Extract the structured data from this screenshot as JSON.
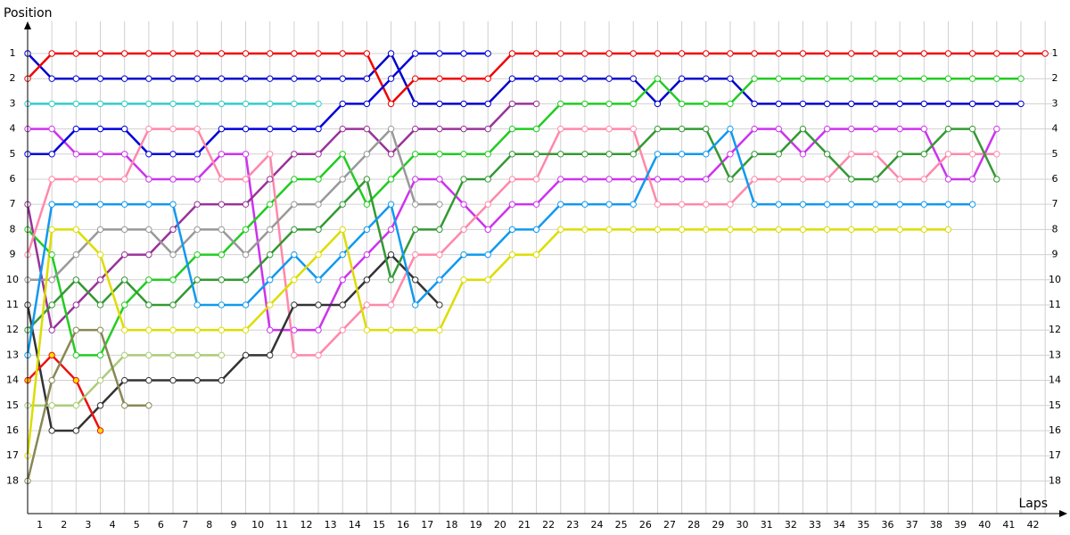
{
  "chart_data": {
    "type": "line",
    "title": "",
    "ylabel": "Position",
    "xlabel": "Laps",
    "xlim": [
      0,
      42.3
    ],
    "ylim": [
      19.3,
      0
    ],
    "grid": true,
    "x": [
      0,
      1,
      2,
      3,
      4,
      5,
      6,
      7,
      8,
      9,
      10,
      11,
      12,
      13,
      14,
      15,
      16,
      17,
      18,
      19,
      20,
      21,
      22,
      23,
      24,
      25,
      26,
      27,
      28,
      29,
      30,
      31,
      32,
      33,
      34,
      35,
      36,
      37,
      38,
      39,
      40,
      41,
      42
    ],
    "yticks": [
      1,
      2,
      3,
      4,
      5,
      6,
      7,
      8,
      9,
      10,
      11,
      12,
      13,
      14,
      15,
      16,
      17,
      18
    ],
    "xticks": [
      {
        "value": 0.5,
        "label": "1"
      },
      {
        "value": 1.5,
        "label": "2"
      },
      {
        "value": 2.5,
        "label": "3"
      },
      {
        "value": 3.5,
        "label": "4"
      },
      {
        "value": 4.5,
        "label": "5"
      },
      {
        "value": 5.5,
        "label": "6"
      },
      {
        "value": 6.5,
        "label": "7"
      },
      {
        "value": 7.5,
        "label": "8"
      },
      {
        "value": 8.5,
        "label": "9"
      },
      {
        "value": 9.5,
        "label": "10"
      },
      {
        "value": 10.5,
        "label": "11"
      },
      {
        "value": 11.5,
        "label": "12"
      },
      {
        "value": 12.5,
        "label": "13"
      },
      {
        "value": 13.5,
        "label": "14"
      },
      {
        "value": 14.5,
        "label": "15"
      },
      {
        "value": 15.5,
        "label": "16"
      },
      {
        "value": 16.5,
        "label": "17"
      },
      {
        "value": 17.5,
        "label": "18"
      },
      {
        "value": 18.5,
        "label": "19"
      },
      {
        "value": 19.5,
        "label": "20"
      },
      {
        "value": 20.5,
        "label": "21"
      },
      {
        "value": 21.5,
        "label": "22"
      },
      {
        "value": 22.5,
        "label": "23"
      },
      {
        "value": 23.5,
        "label": "24"
      },
      {
        "value": 24.5,
        "label": "25"
      },
      {
        "value": 25.5,
        "label": "26"
      },
      {
        "value": 26.5,
        "label": "27"
      },
      {
        "value": 27.5,
        "label": "28"
      },
      {
        "value": 28.5,
        "label": "29"
      },
      {
        "value": 29.5,
        "label": "30"
      },
      {
        "value": 30.5,
        "label": "31"
      },
      {
        "value": 31.5,
        "label": "32"
      },
      {
        "value": 32.5,
        "label": "33"
      },
      {
        "value": 33.5,
        "label": "34"
      },
      {
        "value": 34.5,
        "label": "35"
      },
      {
        "value": 35.5,
        "label": "36"
      },
      {
        "value": 36.5,
        "label": "37"
      },
      {
        "value": 37.5,
        "label": "38"
      },
      {
        "value": 38.5,
        "label": "39"
      },
      {
        "value": 39.5,
        "label": "40"
      },
      {
        "value": 40.5,
        "label": "41"
      },
      {
        "value": 41.5,
        "label": "42"
      }
    ],
    "series": [
      {
        "color": "#0000cc",
        "values": [
          1,
          2,
          2,
          2,
          2,
          2,
          2,
          2,
          2,
          2,
          2,
          2,
          2,
          2,
          2,
          1,
          3,
          3,
          3,
          3,
          2,
          2,
          2,
          2,
          2,
          2,
          3,
          2,
          2,
          2,
          3,
          3,
          3,
          3,
          3,
          3,
          3,
          3,
          3,
          3,
          3,
          3,
          null
        ]
      },
      {
        "color": "#ee0000",
        "values": [
          2,
          1,
          1,
          1,
          1,
          1,
          1,
          1,
          1,
          1,
          1,
          1,
          1,
          1,
          1,
          3,
          2,
          2,
          2,
          2,
          1,
          1,
          1,
          1,
          1,
          1,
          1,
          1,
          1,
          1,
          1,
          1,
          1,
          1,
          1,
          1,
          1,
          1,
          1,
          1,
          1,
          1,
          1
        ]
      },
      {
        "color": "#33cccc",
        "values": [
          3,
          3,
          3,
          3,
          3,
          3,
          3,
          3,
          3,
          3,
          3,
          3,
          3,
          null,
          null,
          null,
          null,
          null,
          null,
          null,
          null,
          null,
          null,
          null,
          null,
          null,
          null,
          null,
          null,
          null,
          null,
          null,
          null,
          null,
          null,
          null,
          null,
          null,
          null,
          null,
          null,
          null,
          null
        ]
      },
      {
        "color": "#cc33ee",
        "values": [
          4,
          4,
          5,
          5,
          5,
          6,
          6,
          6,
          5,
          5,
          12,
          12,
          12,
          10,
          9,
          8,
          6,
          6,
          7,
          8,
          7,
          7,
          6,
          6,
          6,
          6,
          6,
          6,
          6,
          5,
          4,
          4,
          5,
          4,
          4,
          4,
          4,
          4,
          6,
          6,
          4,
          null,
          null
        ]
      },
      {
        "color": "#0000dd",
        "values": [
          5,
          5,
          4,
          4,
          4,
          5,
          5,
          5,
          4,
          4,
          4,
          4,
          4,
          3,
          3,
          2,
          1,
          1,
          1,
          1,
          null,
          null,
          null,
          null,
          null,
          null,
          null,
          null,
          null,
          null,
          null,
          null,
          null,
          null,
          null,
          null,
          null,
          null,
          null,
          null,
          null,
          null,
          null
        ]
      },
      {
        "color": "#993399",
        "values": [
          7,
          12,
          11,
          10,
          9,
          9,
          8,
          7,
          7,
          7,
          6,
          5,
          5,
          4,
          4,
          5,
          4,
          4,
          4,
          4,
          3,
          3,
          null,
          null,
          null,
          null,
          null,
          null,
          null,
          null,
          null,
          null,
          null,
          null,
          null,
          null,
          null,
          null,
          null,
          null,
          null,
          null,
          null
        ]
      },
      {
        "color": "#22cc22",
        "values": [
          8,
          9,
          13,
          13,
          11,
          10,
          10,
          9,
          9,
          8,
          7,
          6,
          6,
          5,
          7,
          6,
          5,
          5,
          5,
          5,
          4,
          4,
          3,
          3,
          3,
          3,
          2,
          3,
          3,
          3,
          2,
          2,
          2,
          2,
          2,
          2,
          2,
          2,
          2,
          2,
          2,
          2,
          null
        ]
      },
      {
        "color": "#ff88aa",
        "values": [
          9,
          6,
          6,
          6,
          6,
          4,
          4,
          4,
          6,
          6,
          5,
          13,
          13,
          12,
          11,
          11,
          9,
          9,
          8,
          7,
          6,
          6,
          4,
          4,
          4,
          4,
          7,
          7,
          7,
          7,
          6,
          6,
          6,
          6,
          5,
          5,
          6,
          6,
          5,
          5,
          5,
          null,
          null
        ]
      },
      {
        "color": "#999999",
        "values": [
          10,
          10,
          9,
          8,
          8,
          8,
          9,
          8,
          8,
          9,
          8,
          7,
          7,
          6,
          5,
          4,
          7,
          7,
          null,
          null,
          null,
          null,
          null,
          null,
          null,
          null,
          null,
          null,
          null,
          null,
          null,
          null,
          null,
          null,
          null,
          null,
          null,
          null,
          null,
          null,
          null,
          null,
          null
        ]
      },
      {
        "color": "#333333",
        "values": [
          11,
          16,
          16,
          15,
          14,
          14,
          14,
          14,
          14,
          13,
          13,
          11,
          11,
          11,
          10,
          9,
          10,
          11,
          null,
          null,
          null,
          null,
          null,
          null,
          null,
          null,
          null,
          null,
          null,
          null,
          null,
          null,
          null,
          null,
          null,
          null,
          null,
          null,
          null,
          null,
          null,
          null,
          null
        ]
      },
      {
        "color": "#339933",
        "values": [
          12,
          11,
          10,
          11,
          10,
          11,
          11,
          10,
          10,
          10,
          9,
          8,
          8,
          7,
          6,
          10,
          8,
          8,
          6,
          6,
          5,
          5,
          5,
          5,
          5,
          5,
          4,
          4,
          4,
          6,
          5,
          5,
          4,
          5,
          6,
          6,
          5,
          5,
          4,
          4,
          6,
          null,
          null
        ]
      },
      {
        "color": "#1199ee",
        "values": [
          13,
          7,
          7,
          7,
          7,
          7,
          7,
          11,
          11,
          11,
          10,
          9,
          10,
          9,
          8,
          7,
          11,
          10,
          9,
          9,
          8,
          8,
          7,
          7,
          7,
          7,
          5,
          5,
          5,
          4,
          7,
          7,
          7,
          7,
          7,
          7,
          7,
          7,
          7,
          7,
          null,
          null,
          null
        ]
      },
      {
        "color": "#ee1111",
        "marker_color": "#ffdd00",
        "values": [
          14,
          13,
          14,
          16,
          null,
          null,
          null,
          null,
          null,
          null,
          null,
          null,
          null,
          null,
          null,
          null,
          null,
          null,
          null,
          null,
          null,
          null,
          null,
          null,
          null,
          null,
          null,
          null,
          null,
          null,
          null,
          null,
          null,
          null,
          null,
          null,
          null,
          null,
          null,
          null,
          null,
          null,
          null
        ]
      },
      {
        "color": "#aacc77",
        "values": [
          15,
          15,
          15,
          14,
          13,
          13,
          13,
          13,
          13,
          null,
          null,
          null,
          null,
          null,
          null,
          null,
          null,
          null,
          null,
          null,
          null,
          null,
          null,
          null,
          null,
          null,
          null,
          null,
          null,
          null,
          null,
          null,
          null,
          null,
          null,
          null,
          null,
          null,
          null,
          null,
          null,
          null,
          null
        ]
      },
      {
        "color": "#dddd00",
        "values": [
          17,
          8,
          8,
          9,
          12,
          12,
          12,
          12,
          12,
          12,
          11,
          10,
          9,
          8,
          12,
          12,
          12,
          12,
          10,
          10,
          9,
          9,
          8,
          8,
          8,
          8,
          8,
          8,
          8,
          8,
          8,
          8,
          8,
          8,
          8,
          8,
          8,
          8,
          8,
          null,
          null,
          null,
          null
        ]
      },
      {
        "color": "#888855",
        "values": [
          18,
          14,
          12,
          12,
          15,
          15,
          null,
          null,
          null,
          null,
          null,
          null,
          null,
          null,
          null,
          null,
          null,
          null,
          null,
          null,
          null,
          null,
          null,
          null,
          null,
          null,
          null,
          null,
          null,
          null,
          null,
          null,
          null,
          null,
          null,
          null,
          null,
          null,
          null,
          null,
          null,
          null,
          null
        ]
      }
    ]
  }
}
